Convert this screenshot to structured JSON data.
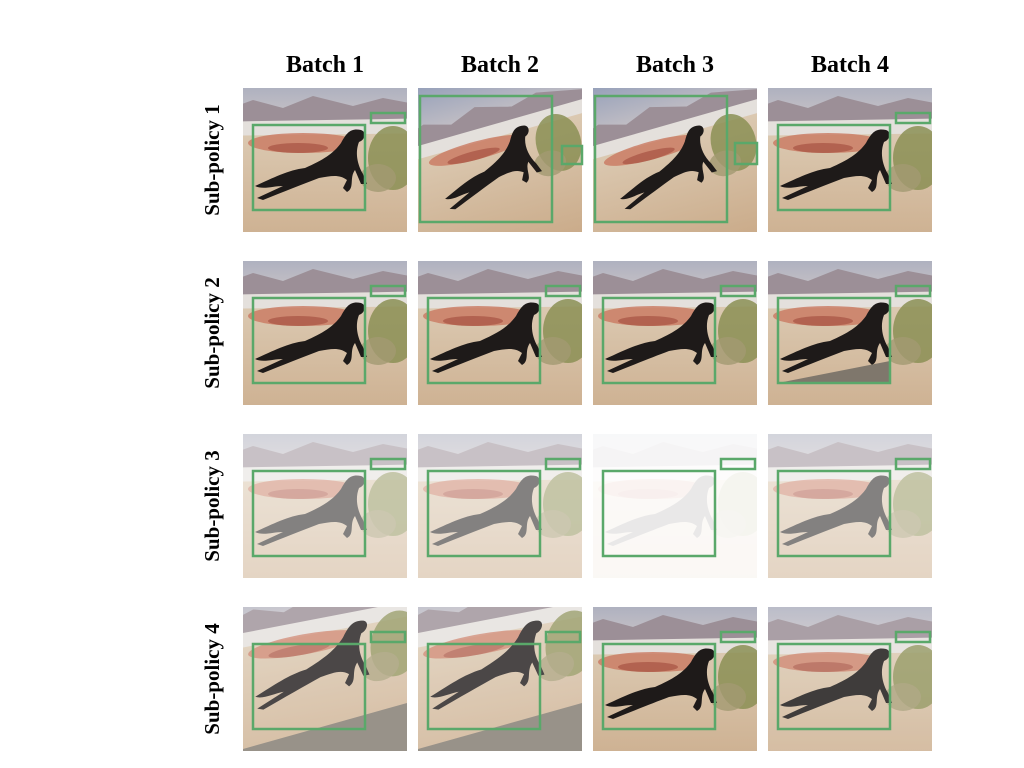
{
  "figure": {
    "column_headers": [
      "Batch 1",
      "Batch 2",
      "Batch 3",
      "Batch 4"
    ],
    "row_labels": [
      "Sub-policy 1",
      "Sub-policy 2",
      "Sub-policy 3",
      "Sub-policy 4"
    ]
  }
}
